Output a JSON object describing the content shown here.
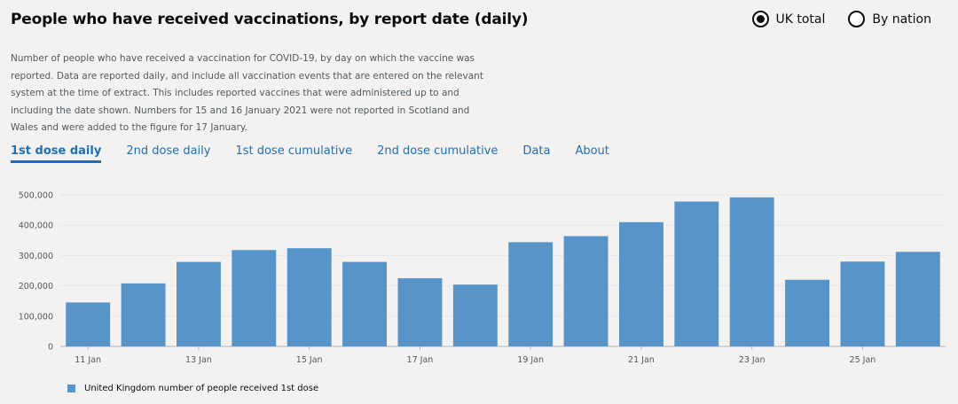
{
  "header": {
    "title": "People who have received vaccinations, by report date (daily)"
  },
  "radios": [
    {
      "label": "UK total",
      "selected": true
    },
    {
      "label": "By nation",
      "selected": false
    }
  ],
  "description": "Number of people who have received a vaccination for COVID-19, by day on which the vaccine was reported. Data are reported daily, and include all vaccination events that are entered on the relevant system at the time of extract. This includes reported vaccines that were administered up to and including the date shown. Numbers for 15 and 16 January 2021 were not reported in Scotland and Wales and were added to the figure for 17 January.",
  "tabs": [
    {
      "label": "1st dose daily",
      "active": true
    },
    {
      "label": "2nd dose daily",
      "active": false
    },
    {
      "label": "1st dose cumulative",
      "active": false
    },
    {
      "label": "2nd dose cumulative",
      "active": false
    },
    {
      "label": "Data",
      "active": false
    },
    {
      "label": "About",
      "active": false
    }
  ],
  "colors": {
    "bar": "#5694ca",
    "link": "#1d70b8",
    "grid": "#e6e6e6",
    "axis_text": "#505a5f"
  },
  "chart_data": {
    "type": "bar",
    "categories": [
      "11 Jan",
      "12 Jan",
      "13 Jan",
      "14 Jan",
      "15 Jan",
      "16 Jan",
      "17 Jan",
      "18 Jan",
      "19 Jan",
      "20 Jan",
      "21 Jan",
      "22 Jan",
      "23 Jan",
      "24 Jan",
      "25 Jan",
      "26 Jan"
    ],
    "x_tick_labels": [
      "11 Jan",
      "13 Jan",
      "15 Jan",
      "17 Jan",
      "19 Jan",
      "21 Jan",
      "23 Jan",
      "25 Jan"
    ],
    "series": [
      {
        "name": "United Kingdom number of people received 1st dose",
        "values": [
          145000,
          208000,
          279000,
          318000,
          324000,
          279000,
          225000,
          204000,
          344000,
          364000,
          410000,
          478000,
          492000,
          220000,
          280000,
          312000
        ]
      }
    ],
    "y_ticks": [
      0,
      100000,
      200000,
      300000,
      400000,
      500000
    ],
    "y_tick_labels": [
      "0",
      "100,000",
      "200,000",
      "300,000",
      "400,000",
      "500,000"
    ],
    "ylim": [
      0,
      500000
    ],
    "grid": true,
    "legend_position": "bottom-left"
  }
}
